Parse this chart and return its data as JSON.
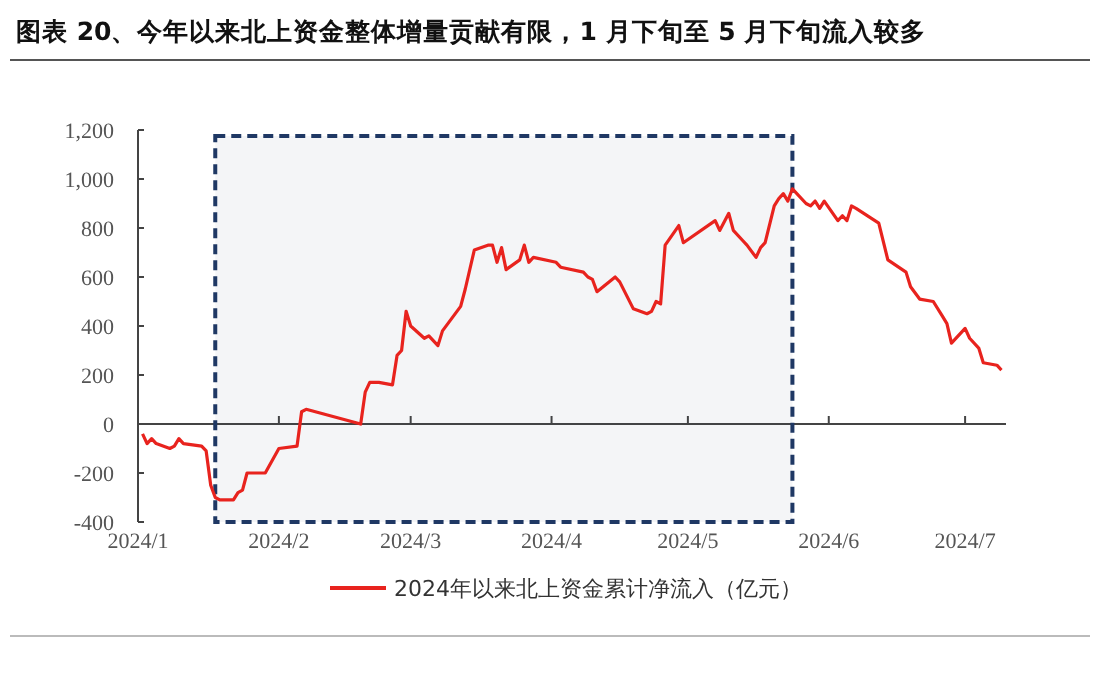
{
  "chart_data": {
    "type": "line",
    "title": "图表 20、今年以来北上资金整体增量贡献有限，1 月下旬至 5 月下旬流入较多",
    "xlim": [
      "2024-01-01",
      "2024-07-10"
    ],
    "xticks": [
      {
        "value": "2024-01-01",
        "label": "2024/1"
      },
      {
        "value": "2024-02-01",
        "label": "2024/2"
      },
      {
        "value": "2024-03-01",
        "label": "2024/3"
      },
      {
        "value": "2024-04-01",
        "label": "2024/4"
      },
      {
        "value": "2024-05-01",
        "label": "2024/5"
      },
      {
        "value": "2024-06-01",
        "label": "2024/6"
      },
      {
        "value": "2024-07-01",
        "label": "2024/7"
      }
    ],
    "ylim": [
      -400,
      1200
    ],
    "yticks": [
      {
        "value": -400,
        "label": "-400"
      },
      {
        "value": -200,
        "label": "-200"
      },
      0,
      200,
      400,
      600,
      800,
      {
        "value": 1000,
        "label": "1,000"
      },
      {
        "value": 1200,
        "label": "1,200"
      }
    ],
    "legend": "bottom",
    "bands": [
      {
        "axis": "x",
        "from": "2024-01-18",
        "to": "2024-05-24",
        "color": "#1f3864"
      }
    ],
    "series": [
      {
        "name": "2024年以来北上资金累计净流入（亿元）",
        "color": "#e8231e",
        "x": [
          "2024-01-02",
          "2024-01-03",
          "2024-01-04",
          "2024-01-05",
          "2024-01-08",
          "2024-01-09",
          "2024-01-10",
          "2024-01-11",
          "2024-01-15",
          "2024-01-16",
          "2024-01-17",
          "2024-01-18",
          "2024-01-19",
          "2024-01-22",
          "2024-01-23",
          "2024-01-24",
          "2024-01-25",
          "2024-01-29",
          "2024-02-01",
          "2024-02-05",
          "2024-02-06",
          "2024-02-07",
          "2024-02-19",
          "2024-02-20",
          "2024-02-21",
          "2024-02-23",
          "2024-02-26",
          "2024-02-27",
          "2024-02-28",
          "2024-02-29",
          "2024-03-01",
          "2024-03-04",
          "2024-03-05",
          "2024-03-07",
          "2024-03-08",
          "2024-03-12",
          "2024-03-13",
          "2024-03-15",
          "2024-03-18",
          "2024-03-19",
          "2024-03-20",
          "2024-03-21",
          "2024-03-22",
          "2024-03-25",
          "2024-03-26",
          "2024-03-27",
          "2024-03-28",
          "2024-04-02",
          "2024-04-03",
          "2024-04-08",
          "2024-04-09",
          "2024-04-10",
          "2024-04-11",
          "2024-04-15",
          "2024-04-16",
          "2024-04-19",
          "2024-04-22",
          "2024-04-23",
          "2024-04-24",
          "2024-04-25",
          "2024-04-26",
          "2024-04-29",
          "2024-04-30",
          "2024-05-07",
          "2024-05-08",
          "2024-05-10",
          "2024-05-11",
          "2024-05-13",
          "2024-05-14",
          "2024-05-16",
          "2024-05-17",
          "2024-05-18",
          "2024-05-20",
          "2024-05-21",
          "2024-05-22",
          "2024-05-23",
          "2024-05-24",
          "2024-05-27",
          "2024-05-28",
          "2024-05-29",
          "2024-05-30",
          "2024-05-31",
          "2024-06-03",
          "2024-06-04",
          "2024-06-05",
          "2024-06-06",
          "2024-06-07",
          "2024-06-12",
          "2024-06-14",
          "2024-06-18",
          "2024-06-19",
          "2024-06-21",
          "2024-06-24",
          "2024-06-26",
          "2024-06-27",
          "2024-06-28",
          "2024-07-01",
          "2024-07-02",
          "2024-07-04",
          "2024-07-05",
          "2024-07-08",
          "2024-07-09"
        ],
        "values": [
          -40,
          -80,
          -60,
          -80,
          -100,
          -90,
          -60,
          -80,
          -90,
          -110,
          -250,
          -300,
          -310,
          -310,
          -280,
          -270,
          -200,
          -200,
          -100,
          -90,
          50,
          60,
          0,
          130,
          170,
          170,
          160,
          280,
          300,
          460,
          400,
          350,
          360,
          320,
          380,
          480,
          550,
          710,
          730,
          730,
          660,
          720,
          630,
          670,
          730,
          660,
          680,
          660,
          640,
          620,
          600,
          590,
          540,
          600,
          580,
          470,
          450,
          460,
          500,
          490,
          730,
          810,
          740,
          830,
          790,
          860,
          790,
          750,
          730,
          680,
          720,
          740,
          890,
          920,
          940,
          910,
          960,
          900,
          890,
          910,
          880,
          910,
          830,
          850,
          830,
          890,
          880,
          820,
          670,
          620,
          560,
          510,
          500,
          440,
          410,
          330,
          390,
          350,
          310,
          250,
          240,
          220
        ]
      }
    ]
  }
}
